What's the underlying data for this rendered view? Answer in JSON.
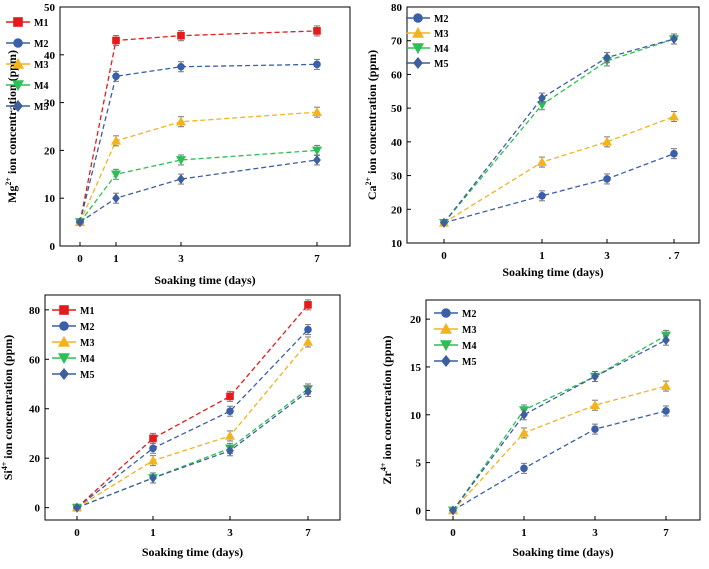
{
  "chart_data": [
    {
      "type": "line",
      "id": "mg",
      "xlabel": "Soaking time (days)",
      "ylabel_parts": [
        "Mg",
        "2+",
        " ion concentration (ppm)"
      ],
      "x": [
        0,
        1,
        3,
        7
      ],
      "xticks": [
        "0",
        "1",
        "3",
        "7"
      ],
      "ylim": [
        0,
        50
      ],
      "yticks": [
        0,
        10,
        20,
        30,
        40,
        50
      ],
      "series": [
        {
          "name": "M1",
          "color": "#e41a1c",
          "marker": "square",
          "values": [
            5,
            43,
            44,
            45
          ]
        },
        {
          "name": "M2",
          "color": "#3a5fa8",
          "marker": "circle",
          "values": [
            5,
            35.5,
            37.5,
            38
          ]
        },
        {
          "name": "M3",
          "color": "#f2b31d",
          "marker": "triangle-up",
          "values": [
            5,
            22,
            26,
            28
          ]
        },
        {
          "name": "M4",
          "color": "#2dbf55",
          "marker": "triangle-down",
          "values": [
            5,
            15,
            18,
            20
          ]
        },
        {
          "name": "M5",
          "color": "#3e5f9f",
          "marker": "diamond",
          "values": [
            5,
            10,
            14,
            18
          ]
        }
      ]
    },
    {
      "type": "line",
      "id": "ca",
      "xlabel": "Soaking time (days)",
      "ylabel_parts": [
        "Ca",
        "2+",
        " ion concentration (ppm)"
      ],
      "x": [
        0,
        1,
        3,
        7
      ],
      "xticks": [
        "0",
        "1",
        "3",
        ". 7"
      ],
      "ylim": [
        10,
        80
      ],
      "yticks": [
        10,
        20,
        30,
        40,
        50,
        60,
        70,
        80
      ],
      "series": [
        {
          "name": "M2",
          "color": "#3a5fa8",
          "marker": "circle",
          "values": [
            16,
            24,
            29,
            36.5
          ]
        },
        {
          "name": "M3",
          "color": "#f2b31d",
          "marker": "triangle-up",
          "values": [
            16,
            34,
            40,
            47.5
          ]
        },
        {
          "name": "M4",
          "color": "#2dbf55",
          "marker": "triangle-down",
          "values": [
            16,
            51,
            64,
            70.5
          ]
        },
        {
          "name": "M5",
          "color": "#3e5f9f",
          "marker": "diamond",
          "values": [
            16,
            53,
            65,
            70.5
          ]
        }
      ]
    },
    {
      "type": "line",
      "id": "si",
      "xlabel": "Soaking time (days)",
      "ylabel_parts": [
        "Si",
        "4+",
        " ion concentration (ppm)"
      ],
      "x": [
        0,
        1,
        3,
        7
      ],
      "xticks": [
        "0",
        "1",
        "3",
        "7"
      ],
      "ylim": [
        -5,
        86
      ],
      "yticks": [
        0,
        20,
        40,
        60,
        80
      ],
      "series": [
        {
          "name": "M1",
          "color": "#e41a1c",
          "marker": "square",
          "values": [
            0,
            28,
            45,
            82
          ]
        },
        {
          "name": "M2",
          "color": "#3a5fa8",
          "marker": "circle",
          "values": [
            0,
            24,
            39,
            72
          ]
        },
        {
          "name": "M3",
          "color": "#f2b31d",
          "marker": "triangle-up",
          "values": [
            0,
            19,
            29,
            67
          ]
        },
        {
          "name": "M4",
          "color": "#2dbf55",
          "marker": "triangle-down",
          "values": [
            0,
            12,
            24,
            48
          ]
        },
        {
          "name": "M5",
          "color": "#3e5f9f",
          "marker": "diamond",
          "values": [
            0,
            12,
            23,
            47
          ]
        }
      ]
    },
    {
      "type": "line",
      "id": "zr",
      "xlabel": "Soaking time (days)",
      "ylabel_parts": [
        "Zr",
        "4+",
        " ion concentration (ppm)"
      ],
      "x": [
        0,
        1,
        3,
        7
      ],
      "xticks": [
        "0",
        "1",
        "3",
        "7"
      ],
      "ylim": [
        -1,
        22
      ],
      "yticks": [
        0,
        5,
        10,
        15,
        20
      ],
      "series": [
        {
          "name": "M2",
          "color": "#3a5fa8",
          "marker": "circle",
          "values": [
            0,
            4.4,
            8.5,
            10.4
          ]
        },
        {
          "name": "M3",
          "color": "#f2b31d",
          "marker": "triangle-up",
          "values": [
            0,
            8.1,
            11,
            13
          ]
        },
        {
          "name": "M4",
          "color": "#2dbf55",
          "marker": "triangle-down",
          "values": [
            0,
            10.5,
            14,
            18.3
          ]
        },
        {
          "name": "M5",
          "color": "#3e5f9f",
          "marker": "diamond",
          "values": [
            0,
            10,
            14,
            17.8
          ]
        }
      ]
    }
  ]
}
